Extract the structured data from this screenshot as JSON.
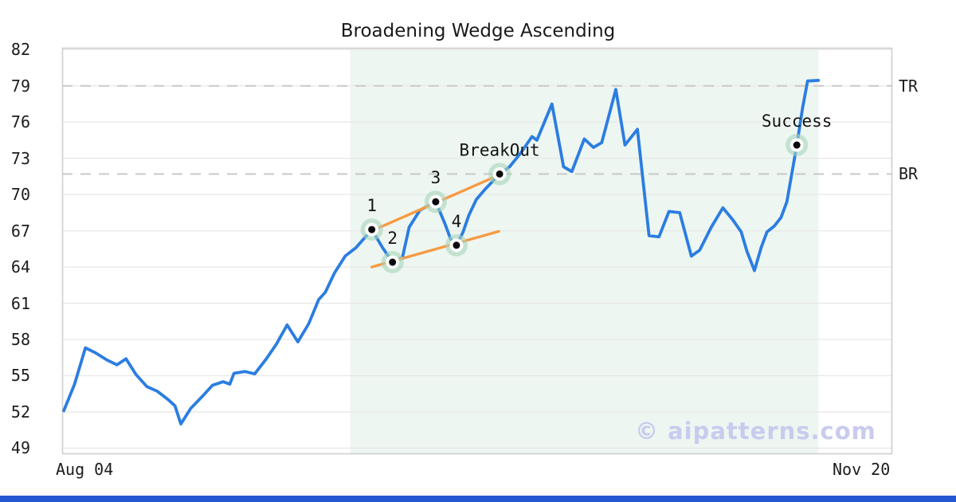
{
  "title": "Broadening Wedge Ascending",
  "watermark": "© aipatterns.com",
  "colors": {
    "line": "#2b7de1",
    "trendline": "#f79a42",
    "marker_halo": "#a7d6ba",
    "marker_dot": "#0a0a0a",
    "zone_fill": "#c8e4d6",
    "grid": "#e8e8e8",
    "spine": "#cfcfcf",
    "dashed": "#c9c9c9",
    "bottom_bar": "#2357d0",
    "watermark": "#c9cbee",
    "annotation_text": "#141414"
  },
  "chart_data": {
    "type": "line",
    "title": "Broadening Wedge Ascending",
    "pattern": "Broadening Wedge Ascending",
    "x_axis": {
      "start_label": "Aug 04",
      "end_label": "Nov 20"
    },
    "y_axis": {
      "ticks": [
        82,
        79,
        76,
        73,
        70,
        67,
        64,
        61,
        58,
        55,
        52,
        49
      ],
      "ylim": [
        48.5,
        82.15
      ]
    },
    "levels": [
      {
        "name": "TR",
        "price": 79.0
      },
      {
        "name": "BR",
        "price": 71.7
      }
    ],
    "pattern_zone": {
      "t_start": 0.347,
      "t_end": 0.911
    },
    "series": {
      "name": "price",
      "points": [
        [
          0.002,
          52.1
        ],
        [
          0.015,
          54.3
        ],
        [
          0.028,
          57.3
        ],
        [
          0.04,
          56.9
        ],
        [
          0.054,
          56.3
        ],
        [
          0.066,
          55.9
        ],
        [
          0.077,
          56.4
        ],
        [
          0.089,
          55.1
        ],
        [
          0.102,
          54.1
        ],
        [
          0.115,
          53.7
        ],
        [
          0.128,
          53.0
        ],
        [
          0.136,
          52.5
        ],
        [
          0.143,
          51.0
        ],
        [
          0.155,
          52.3
        ],
        [
          0.169,
          53.3
        ],
        [
          0.181,
          54.2
        ],
        [
          0.194,
          54.5
        ],
        [
          0.202,
          54.3
        ],
        [
          0.207,
          55.2
        ],
        [
          0.22,
          55.35
        ],
        [
          0.232,
          55.15
        ],
        [
          0.246,
          56.4
        ],
        [
          0.258,
          57.6
        ],
        [
          0.271,
          59.2
        ],
        [
          0.284,
          57.8
        ],
        [
          0.297,
          59.3
        ],
        [
          0.309,
          61.3
        ],
        [
          0.317,
          61.9
        ],
        [
          0.328,
          63.5
        ],
        [
          0.341,
          64.9
        ],
        [
          0.354,
          65.6
        ],
        [
          0.373,
          67.1
        ],
        [
          0.386,
          65.6
        ],
        [
          0.398,
          64.4
        ],
        [
          0.41,
          64.8
        ],
        [
          0.418,
          67.3
        ],
        [
          0.431,
          68.7
        ],
        [
          0.45,
          69.4
        ],
        [
          0.461,
          67.6
        ],
        [
          0.468,
          66.3
        ],
        [
          0.475,
          65.8
        ],
        [
          0.483,
          66.9
        ],
        [
          0.49,
          68.3
        ],
        [
          0.499,
          69.6
        ],
        [
          0.509,
          70.4
        ],
        [
          0.527,
          71.7
        ],
        [
          0.539,
          72.3
        ],
        [
          0.552,
          73.4
        ],
        [
          0.566,
          74.8
        ],
        [
          0.572,
          74.5
        ],
        [
          0.59,
          77.5
        ],
        [
          0.604,
          72.3
        ],
        [
          0.614,
          71.9
        ],
        [
          0.629,
          74.6
        ],
        [
          0.64,
          73.9
        ],
        [
          0.65,
          74.3
        ],
        [
          0.667,
          78.7
        ],
        [
          0.678,
          74.1
        ],
        [
          0.693,
          75.4
        ],
        [
          0.707,
          66.6
        ],
        [
          0.719,
          66.5
        ],
        [
          0.731,
          68.6
        ],
        [
          0.744,
          68.5
        ],
        [
          0.758,
          64.9
        ],
        [
          0.768,
          65.4
        ],
        [
          0.782,
          67.3
        ],
        [
          0.796,
          68.9
        ],
        [
          0.808,
          67.9
        ],
        [
          0.818,
          66.9
        ],
        [
          0.825,
          65.3
        ],
        [
          0.834,
          63.7
        ],
        [
          0.842,
          65.6
        ],
        [
          0.849,
          66.9
        ],
        [
          0.858,
          67.4
        ],
        [
          0.866,
          68.1
        ],
        [
          0.873,
          69.4
        ],
        [
          0.885,
          74.1
        ],
        [
          0.892,
          77.2
        ],
        [
          0.898,
          79.4
        ],
        [
          0.911,
          79.45
        ]
      ]
    },
    "markers": [
      {
        "label": "1",
        "t": 0.373,
        "price": 67.1
      },
      {
        "label": "2",
        "t": 0.398,
        "price": 64.4
      },
      {
        "label": "3",
        "t": 0.45,
        "price": 69.4
      },
      {
        "label": "4",
        "t": 0.475,
        "price": 65.8
      },
      {
        "label": "BreakOut",
        "t": 0.527,
        "price": 71.7
      },
      {
        "label": "Success",
        "t": 0.885,
        "price": 74.1
      }
    ],
    "trendlines": [
      {
        "name": "resistance",
        "from": [
          0.375,
          67.05
        ],
        "to": [
          0.529,
          71.7
        ]
      },
      {
        "name": "support",
        "from": [
          0.373,
          64.0
        ],
        "to": [
          0.526,
          66.95
        ]
      }
    ]
  }
}
